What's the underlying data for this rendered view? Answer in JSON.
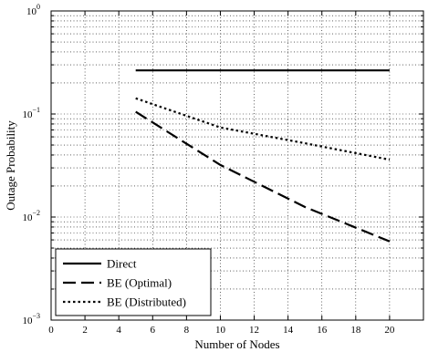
{
  "chart_data": {
    "type": "line",
    "title": "",
    "xlabel": "Number of Nodes",
    "ylabel": "Outage Probability",
    "xlim": [
      0,
      22
    ],
    "ylim": [
      0.001,
      1
    ],
    "yscale": "log",
    "grid": "major and minor, dotted",
    "x_ticks": [
      0,
      2,
      4,
      6,
      8,
      10,
      12,
      14,
      16,
      18,
      20
    ],
    "y_ticks": [
      {
        "value": 0.001,
        "base": "10",
        "exp": "−3"
      },
      {
        "value": 0.01,
        "base": "10",
        "exp": "−2"
      },
      {
        "value": 0.1,
        "base": "10",
        "exp": "−1"
      },
      {
        "value": 1,
        "base": "10",
        "exp": "0"
      }
    ],
    "legend_position": "bottom-left",
    "series": [
      {
        "name": "Direct",
        "style": "solid",
        "x": [
          5,
          10,
          15,
          20
        ],
        "y": [
          0.265,
          0.265,
          0.265,
          0.265
        ]
      },
      {
        "name": "BE (Optimal)",
        "style": "dashed",
        "x": [
          5,
          10,
          15,
          20
        ],
        "y": [
          0.105,
          0.032,
          0.0125,
          0.0058
        ]
      },
      {
        "name": "BE (Distributed)",
        "style": "dotted",
        "x": [
          5,
          10,
          15,
          20
        ],
        "y": [
          0.142,
          0.074,
          0.052,
          0.036
        ]
      }
    ]
  }
}
